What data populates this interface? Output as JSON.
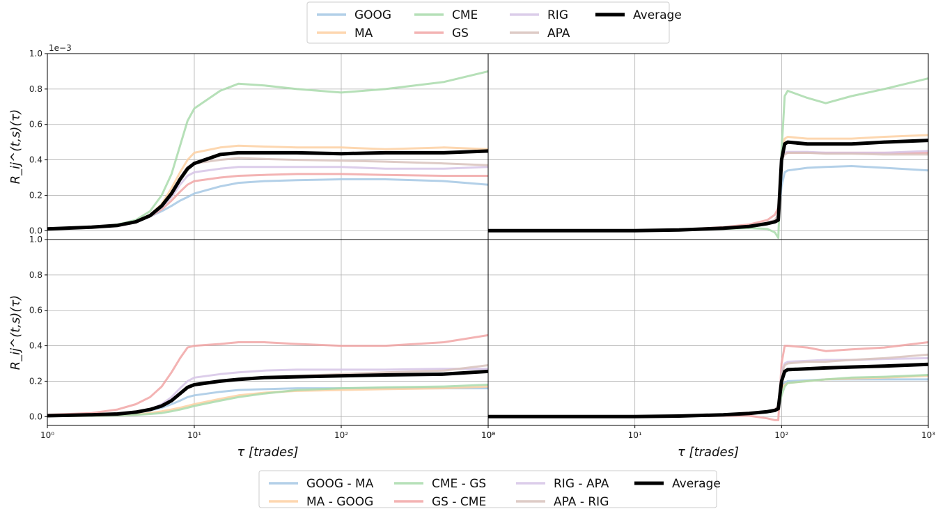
{
  "chart_data": {
    "type": "line",
    "layout": "2x2 panels, shared axes",
    "xscale": "log",
    "xlim": [
      1,
      1000
    ],
    "ylim": [
      -0.05,
      1.0
    ],
    "y_multiplier_label": "1e−3",
    "xlabel": "τ [trades]",
    "ylabel_top": "R_ij^(t,s)(τ)",
    "ylabel_bottom": "R_ij^(t,s)(τ)",
    "x_ticks": [
      1,
      10,
      100,
      1000
    ],
    "x_tick_labels": [
      "10⁰",
      "10¹",
      "10²",
      "10³"
    ],
    "y_ticks": [
      0.0,
      0.2,
      0.4,
      0.6,
      0.8,
      1.0
    ],
    "y_tick_labels": [
      "0.0",
      "0.2",
      "0.4",
      "0.6",
      "0.8",
      "1.0"
    ],
    "grid": true,
    "legend_top": {
      "position": "top-center",
      "entries": [
        {
          "name": "GOOG",
          "color": "#a6c8e4"
        },
        {
          "name": "MA",
          "color": "#fdd0a2"
        },
        {
          "name": "CME",
          "color": "#a9dbab"
        },
        {
          "name": "GS",
          "color": "#f1a6a6"
        },
        {
          "name": "RIG",
          "color": "#d6c4e6"
        },
        {
          "name": "APA",
          "color": "#d8c2bc"
        },
        {
          "name": "Average",
          "color": "#000000"
        }
      ]
    },
    "legend_bottom": {
      "position": "bottom-center",
      "entries": [
        {
          "name": "GOOG - MA",
          "color": "#a6c8e4"
        },
        {
          "name": "MA - GOOG",
          "color": "#fdd0a2"
        },
        {
          "name": "CME - GS",
          "color": "#a9dbab"
        },
        {
          "name": "GS - CME",
          "color": "#f1a6a6"
        },
        {
          "name": "RIG - APA",
          "color": "#d6c4e6"
        },
        {
          "name": "APA - RIG",
          "color": "#d8c2bc"
        },
        {
          "name": "Average",
          "color": "#000000"
        }
      ]
    },
    "panels": [
      {
        "id": "top-left",
        "x": [
          1,
          2,
          3,
          4,
          5,
          6,
          7,
          8,
          9,
          10,
          15,
          20,
          30,
          50,
          100,
          200,
          500,
          1000
        ],
        "series": [
          {
            "name": "GOOG",
            "color": "#a6c8e4",
            "values": [
              0.01,
              0.02,
              0.03,
              0.05,
              0.08,
              0.11,
              0.14,
              0.17,
              0.19,
              0.21,
              0.25,
              0.27,
              0.28,
              0.285,
              0.29,
              0.29,
              0.28,
              0.26
            ]
          },
          {
            "name": "MA",
            "color": "#fdd0a2",
            "values": [
              0.01,
              0.02,
              0.03,
              0.05,
              0.09,
              0.15,
              0.24,
              0.33,
              0.4,
              0.44,
              0.47,
              0.48,
              0.475,
              0.47,
              0.47,
              0.46,
              0.47,
              0.46
            ]
          },
          {
            "name": "CME",
            "color": "#a9dbab",
            "values": [
              0.01,
              0.02,
              0.035,
              0.06,
              0.11,
              0.2,
              0.32,
              0.48,
              0.62,
              0.69,
              0.79,
              0.83,
              0.82,
              0.8,
              0.78,
              0.8,
              0.84,
              0.9
            ]
          },
          {
            "name": "GS",
            "color": "#f1a6a6",
            "values": [
              0.01,
              0.02,
              0.03,
              0.05,
              0.08,
              0.12,
              0.17,
              0.22,
              0.26,
              0.28,
              0.3,
              0.31,
              0.315,
              0.32,
              0.32,
              0.315,
              0.31,
              0.31
            ]
          },
          {
            "name": "RIG",
            "color": "#d6c4e6",
            "values": [
              0.01,
              0.02,
              0.03,
              0.05,
              0.08,
              0.13,
              0.19,
              0.26,
              0.31,
              0.33,
              0.35,
              0.36,
              0.36,
              0.36,
              0.36,
              0.35,
              0.35,
              0.36
            ]
          },
          {
            "name": "APA",
            "color": "#d8c2bc",
            "values": [
              0.01,
              0.02,
              0.03,
              0.05,
              0.085,
              0.14,
              0.21,
              0.3,
              0.36,
              0.38,
              0.4,
              0.41,
              0.405,
              0.4,
              0.395,
              0.39,
              0.38,
              0.37
            ]
          },
          {
            "name": "Average",
            "color": "#000000",
            "values": [
              0.01,
              0.02,
              0.03,
              0.05,
              0.085,
              0.14,
              0.21,
              0.29,
              0.35,
              0.38,
              0.43,
              0.44,
              0.44,
              0.44,
              0.435,
              0.44,
              0.44,
              0.45
            ]
          }
        ]
      },
      {
        "id": "top-right",
        "x": [
          1,
          10,
          20,
          40,
          60,
          80,
          90,
          95,
          100,
          105,
          110,
          150,
          200,
          300,
          500,
          1000
        ],
        "series": [
          {
            "name": "GOOG",
            "color": "#a6c8e4",
            "values": [
              0.0,
              0.0,
              0.005,
              0.015,
              0.025,
              0.04,
              0.05,
              0.07,
              0.25,
              0.33,
              0.34,
              0.355,
              0.36,
              0.365,
              0.355,
              0.34
            ]
          },
          {
            "name": "MA",
            "color": "#fdd0a2",
            "values": [
              0.0,
              0.0,
              0.005,
              0.015,
              0.025,
              0.04,
              0.05,
              0.08,
              0.42,
              0.52,
              0.53,
              0.52,
              0.52,
              0.52,
              0.53,
              0.54
            ]
          },
          {
            "name": "CME",
            "color": "#a9dbab",
            "values": [
              0.0,
              0.0,
              0.003,
              0.01,
              0.015,
              0.01,
              -0.01,
              -0.04,
              0.45,
              0.76,
              0.79,
              0.75,
              0.72,
              0.76,
              0.8,
              0.86
            ]
          },
          {
            "name": "GS",
            "color": "#f1a6a6",
            "values": [
              0.0,
              0.0,
              0.005,
              0.02,
              0.035,
              0.06,
              0.09,
              0.13,
              0.4,
              0.44,
              0.44,
              0.44,
              0.44,
              0.44,
              0.44,
              0.44
            ]
          },
          {
            "name": "RIG",
            "color": "#d6c4e6",
            "values": [
              0.0,
              0.0,
              0.005,
              0.015,
              0.025,
              0.045,
              0.06,
              0.09,
              0.4,
              0.44,
              0.445,
              0.445,
              0.44,
              0.44,
              0.44,
              0.45
            ]
          },
          {
            "name": "APA",
            "color": "#d8c2bc",
            "values": [
              0.0,
              0.0,
              0.005,
              0.015,
              0.025,
              0.045,
              0.06,
              0.09,
              0.4,
              0.43,
              0.44,
              0.44,
              0.435,
              0.435,
              0.43,
              0.43
            ]
          },
          {
            "name": "Average",
            "color": "#000000",
            "values": [
              0.0,
              0.0,
              0.004,
              0.014,
              0.024,
              0.04,
              0.05,
              0.06,
              0.4,
              0.49,
              0.5,
              0.49,
              0.49,
              0.49,
              0.5,
              0.51
            ]
          }
        ]
      },
      {
        "id": "bottom-left",
        "x": [
          1,
          2,
          3,
          4,
          5,
          6,
          7,
          8,
          9,
          10,
          15,
          20,
          30,
          50,
          100,
          200,
          500,
          1000
        ],
        "series": [
          {
            "name": "GOOG - MA",
            "color": "#a6c8e4",
            "values": [
              0.005,
              0.008,
              0.012,
              0.02,
              0.035,
              0.05,
              0.07,
              0.09,
              0.11,
              0.12,
              0.14,
              0.15,
              0.155,
              0.16,
              0.16,
              0.16,
              0.16,
              0.16
            ]
          },
          {
            "name": "MA - GOOG",
            "color": "#fdd0a2",
            "values": [
              0.003,
              0.005,
              0.008,
              0.012,
              0.02,
              0.03,
              0.04,
              0.05,
              0.06,
              0.07,
              0.1,
              0.12,
              0.135,
              0.145,
              0.15,
              0.155,
              0.16,
              0.17
            ]
          },
          {
            "name": "CME - GS",
            "color": "#a9dbab",
            "values": [
              0.003,
              0.005,
              0.007,
              0.01,
              0.015,
              0.02,
              0.03,
              0.04,
              0.05,
              0.06,
              0.09,
              0.11,
              0.13,
              0.15,
              0.16,
              0.165,
              0.17,
              0.18
            ]
          },
          {
            "name": "GS - CME",
            "color": "#f1a6a6",
            "values": [
              0.01,
              0.02,
              0.04,
              0.07,
              0.11,
              0.17,
              0.25,
              0.33,
              0.39,
              0.4,
              0.41,
              0.42,
              0.42,
              0.41,
              0.4,
              0.4,
              0.42,
              0.46
            ]
          },
          {
            "name": "RIG - APA",
            "color": "#d6c4e6",
            "values": [
              0.005,
              0.01,
              0.015,
              0.025,
              0.04,
              0.07,
              0.11,
              0.16,
              0.2,
              0.22,
              0.24,
              0.25,
              0.26,
              0.265,
              0.265,
              0.265,
              0.27,
              0.27
            ]
          },
          {
            "name": "APA - RIG",
            "color": "#d8c2bc",
            "values": [
              0.005,
              0.01,
              0.015,
              0.025,
              0.04,
              0.06,
              0.09,
              0.13,
              0.16,
              0.18,
              0.2,
              0.21,
              0.22,
              0.23,
              0.24,
              0.25,
              0.26,
              0.29
            ]
          },
          {
            "name": "Average",
            "color": "#000000",
            "values": [
              0.005,
              0.01,
              0.015,
              0.025,
              0.04,
              0.06,
              0.09,
              0.13,
              0.165,
              0.18,
              0.2,
              0.21,
              0.22,
              0.225,
              0.23,
              0.235,
              0.24,
              0.255
            ]
          }
        ]
      },
      {
        "id": "bottom-right",
        "x": [
          1,
          10,
          20,
          40,
          60,
          80,
          90,
          95,
          100,
          105,
          110,
          150,
          200,
          300,
          500,
          1000
        ],
        "series": [
          {
            "name": "GOOG - MA",
            "color": "#a6c8e4",
            "values": [
              0.0,
              0.0,
              0.003,
              0.01,
              0.02,
              0.03,
              0.04,
              0.05,
              0.18,
              0.19,
              0.2,
              0.205,
              0.21,
              0.21,
              0.21,
              0.21
            ]
          },
          {
            "name": "MA - GOOG",
            "color": "#fdd0a2",
            "values": [
              0.0,
              0.0,
              0.003,
              0.01,
              0.02,
              0.03,
              0.04,
              0.05,
              0.16,
              0.18,
              0.19,
              0.2,
              0.21,
              0.215,
              0.22,
              0.23
            ]
          },
          {
            "name": "CME - GS",
            "color": "#a9dbab",
            "values": [
              0.0,
              0.0,
              0.003,
              0.01,
              0.02,
              0.03,
              0.035,
              0.04,
              0.12,
              0.17,
              0.19,
              0.2,
              0.21,
              0.22,
              0.225,
              0.235
            ]
          },
          {
            "name": "GS - CME",
            "color": "#f1a6a6",
            "values": [
              0.0,
              0.0,
              0.002,
              0.005,
              0.005,
              -0.01,
              -0.02,
              -0.02,
              0.3,
              0.4,
              0.4,
              0.39,
              0.37,
              0.38,
              0.39,
              0.42
            ]
          },
          {
            "name": "RIG - APA",
            "color": "#d6c4e6",
            "values": [
              0.0,
              0.0,
              0.003,
              0.01,
              0.02,
              0.03,
              0.04,
              0.06,
              0.25,
              0.3,
              0.31,
              0.315,
              0.32,
              0.32,
              0.325,
              0.33
            ]
          },
          {
            "name": "APA - RIG",
            "color": "#d8c2bc",
            "values": [
              0.0,
              0.0,
              0.003,
              0.01,
              0.02,
              0.03,
              0.04,
              0.06,
              0.24,
              0.29,
              0.3,
              0.31,
              0.31,
              0.32,
              0.33,
              0.35
            ]
          },
          {
            "name": "Average",
            "color": "#000000",
            "values": [
              0.0,
              0.0,
              0.003,
              0.01,
              0.018,
              0.028,
              0.035,
              0.045,
              0.2,
              0.255,
              0.265,
              0.27,
              0.275,
              0.28,
              0.285,
              0.295
            ]
          }
        ]
      }
    ]
  }
}
